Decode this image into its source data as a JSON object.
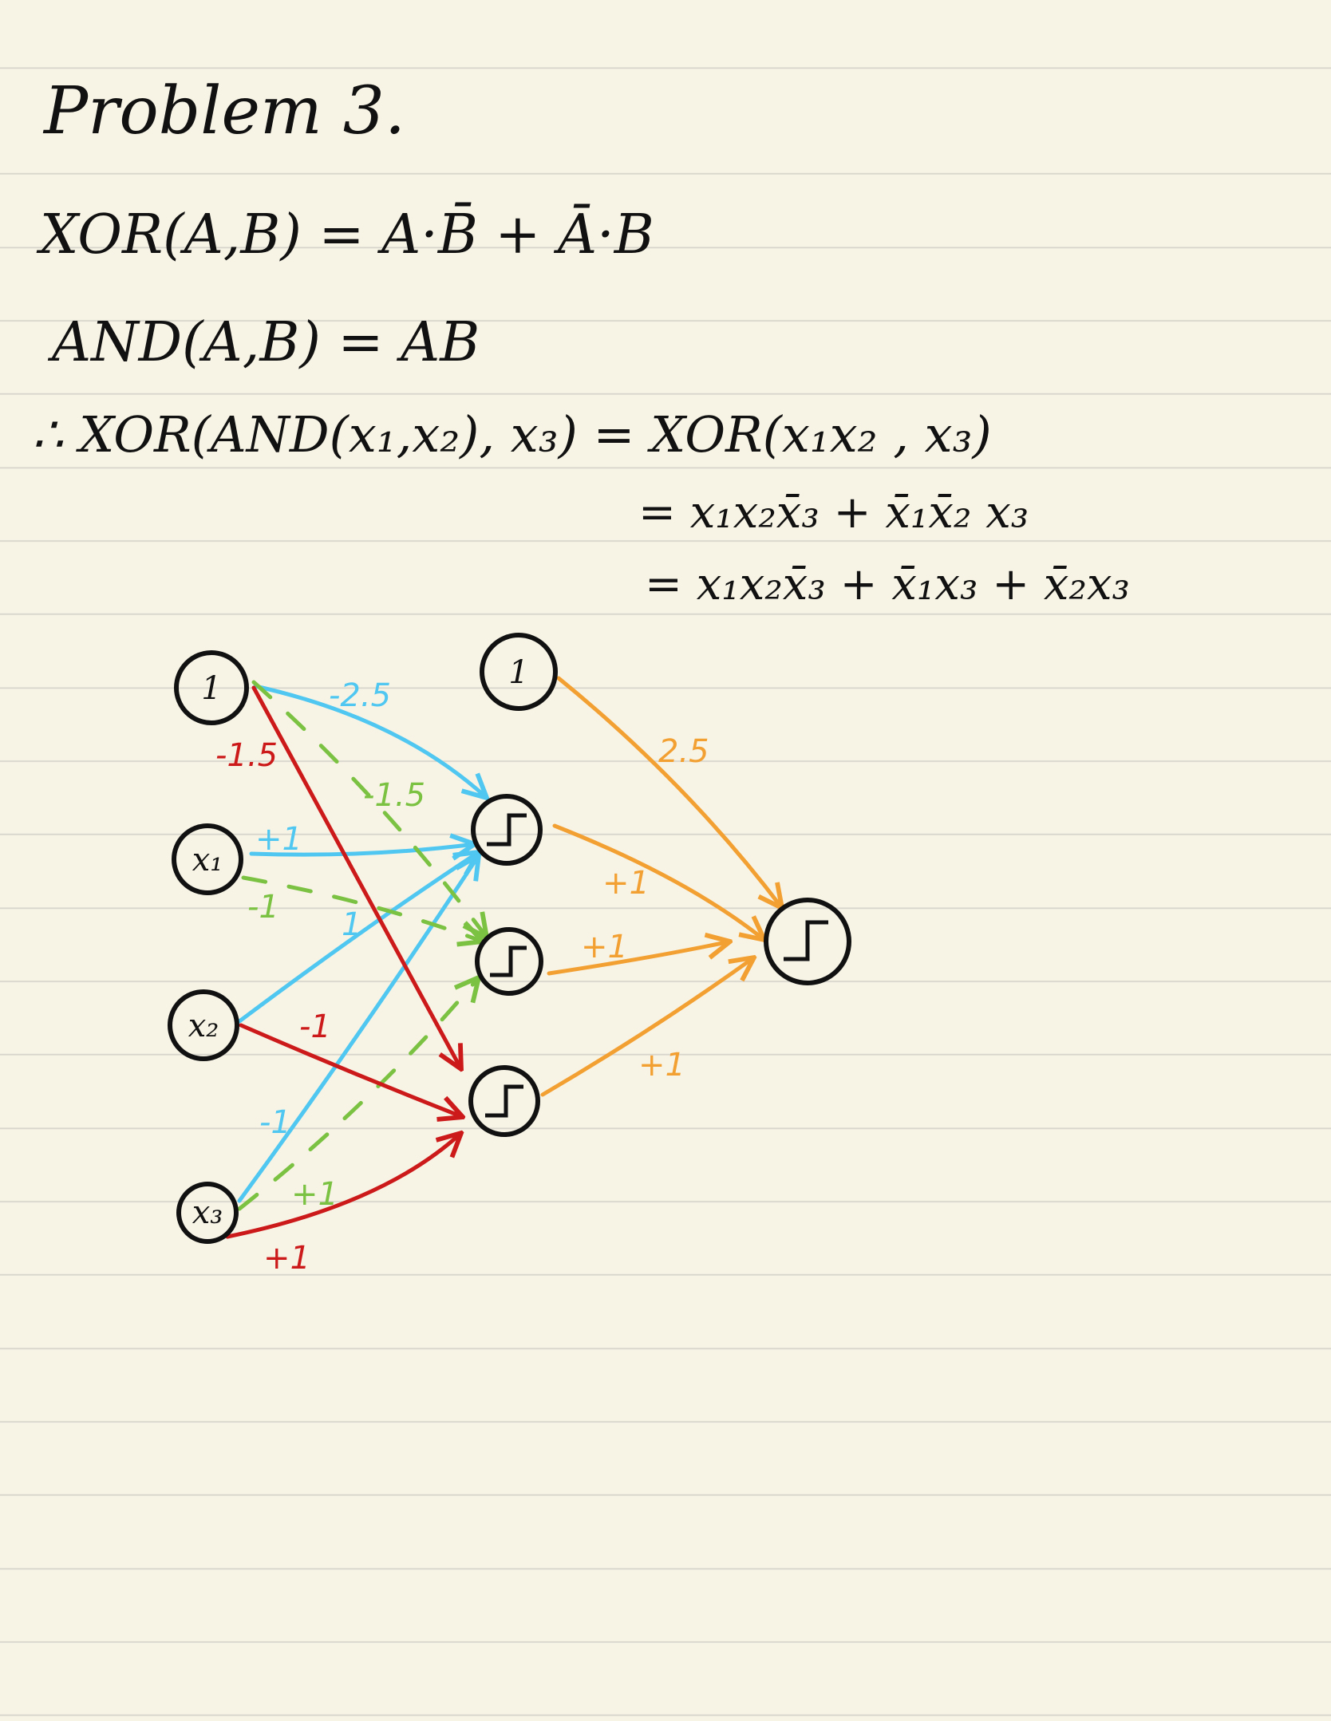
{
  "title": "Problem 3.",
  "equations": {
    "xor_def": "XOR(A,B) = A·B̄ + Ā·B",
    "and_def": "AND(A,B) = AB",
    "derivation_1": "∴ XOR(AND(x₁,x₂), x₃) = XOR(x₁x₂ , x₃)",
    "derivation_2": "= x₁x₂x̄₃ + x̄₁x̄₂ x₃",
    "derivation_3": "= x₁x₂x̄₃ + x̄₁x₃ + x̄₂x₃"
  },
  "colors": {
    "ink": "#111111",
    "blue": "#4fc7f0",
    "green": "#7cc242",
    "red": "#cc1a1a",
    "orange": "#f3a033"
  },
  "network": {
    "nodes": [
      {
        "id": "bias_in",
        "label": "1"
      },
      {
        "id": "x1",
        "label": "x₁"
      },
      {
        "id": "x2",
        "label": "x₂"
      },
      {
        "id": "x3",
        "label": "x₃"
      },
      {
        "id": "bias_hidden",
        "label": "1"
      },
      {
        "id": "h1",
        "label": ""
      },
      {
        "id": "h2",
        "label": ""
      },
      {
        "id": "h3",
        "label": ""
      },
      {
        "id": "out",
        "label": ""
      }
    ],
    "edges": [
      {
        "from": "bias_in",
        "to": "h1",
        "color": "blue",
        "weight": "-2.5"
      },
      {
        "from": "x1",
        "to": "h1",
        "color": "blue",
        "weight": "+1"
      },
      {
        "from": "x2",
        "to": "h1",
        "color": "blue",
        "weight": "1"
      },
      {
        "from": "x3",
        "to": "h1",
        "color": "blue",
        "weight": "-1"
      },
      {
        "from": "bias_in",
        "to": "h2",
        "color": "green",
        "weight": "-1.5"
      },
      {
        "from": "x1",
        "to": "h2",
        "color": "green",
        "weight": "-1"
      },
      {
        "from": "x3",
        "to": "h2",
        "color": "green",
        "weight": "+1"
      },
      {
        "from": "bias_in",
        "to": "h3",
        "color": "red",
        "weight": "-1.5"
      },
      {
        "from": "x2",
        "to": "h3",
        "color": "red",
        "weight": "-1"
      },
      {
        "from": "x3",
        "to": "h3",
        "color": "red",
        "weight": "+1"
      },
      {
        "from": "bias_hidden",
        "to": "out",
        "color": "orange",
        "weight": "2.5"
      },
      {
        "from": "h1",
        "to": "out",
        "color": "orange",
        "weight": "+1"
      },
      {
        "from": "h2",
        "to": "out",
        "color": "orange",
        "weight": "+1"
      },
      {
        "from": "h3",
        "to": "out",
        "color": "orange",
        "weight": "+1"
      }
    ]
  }
}
